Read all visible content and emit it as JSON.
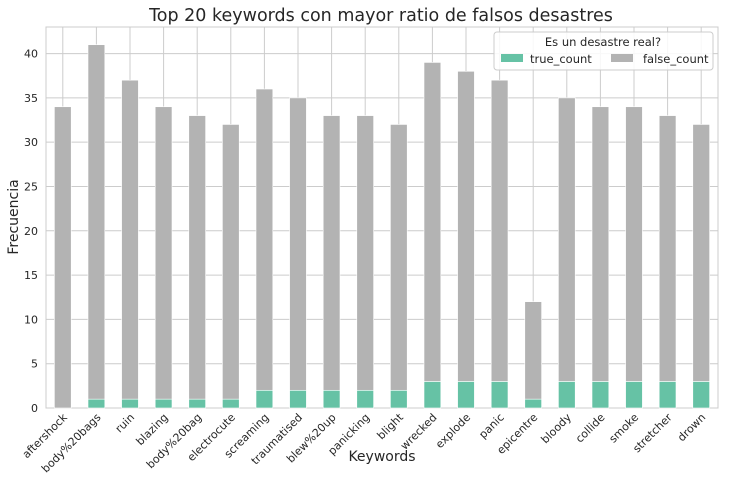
{
  "chart_data": {
    "type": "bar",
    "stacked": true,
    "title": "Top 20 keywords con mayor ratio de falsos desastres",
    "xlabel": "Keywords",
    "ylabel": "Frecuencia",
    "ylim": [
      0,
      43
    ],
    "yticks": [
      0,
      5,
      10,
      15,
      20,
      25,
      30,
      35,
      40
    ],
    "grid": true,
    "legend": {
      "title": "Es un desastre real?",
      "placement": "top-right"
    },
    "categories": [
      "aftershock",
      "body%20bags",
      "ruin",
      "blazing",
      "body%20bag",
      "electrocute",
      "screaming",
      "traumatised",
      "blew%20up",
      "panicking",
      "blight",
      "wrecked",
      "explode",
      "panic",
      "epicentre",
      "bloody",
      "collide",
      "smoke",
      "stretcher",
      "drown"
    ],
    "series": [
      {
        "name": "true_count",
        "color": "#66c2a5",
        "values": [
          0,
          1,
          1,
          1,
          1,
          1,
          2,
          2,
          2,
          2,
          2,
          3,
          3,
          3,
          1,
          3,
          3,
          3,
          3,
          3
        ]
      },
      {
        "name": "false_count",
        "color": "#b3b3b3",
        "values": [
          34,
          40,
          36,
          33,
          32,
          31,
          34,
          33,
          31,
          31,
          30,
          36,
          35,
          34,
          11,
          32,
          31,
          31,
          30,
          29
        ]
      }
    ]
  }
}
